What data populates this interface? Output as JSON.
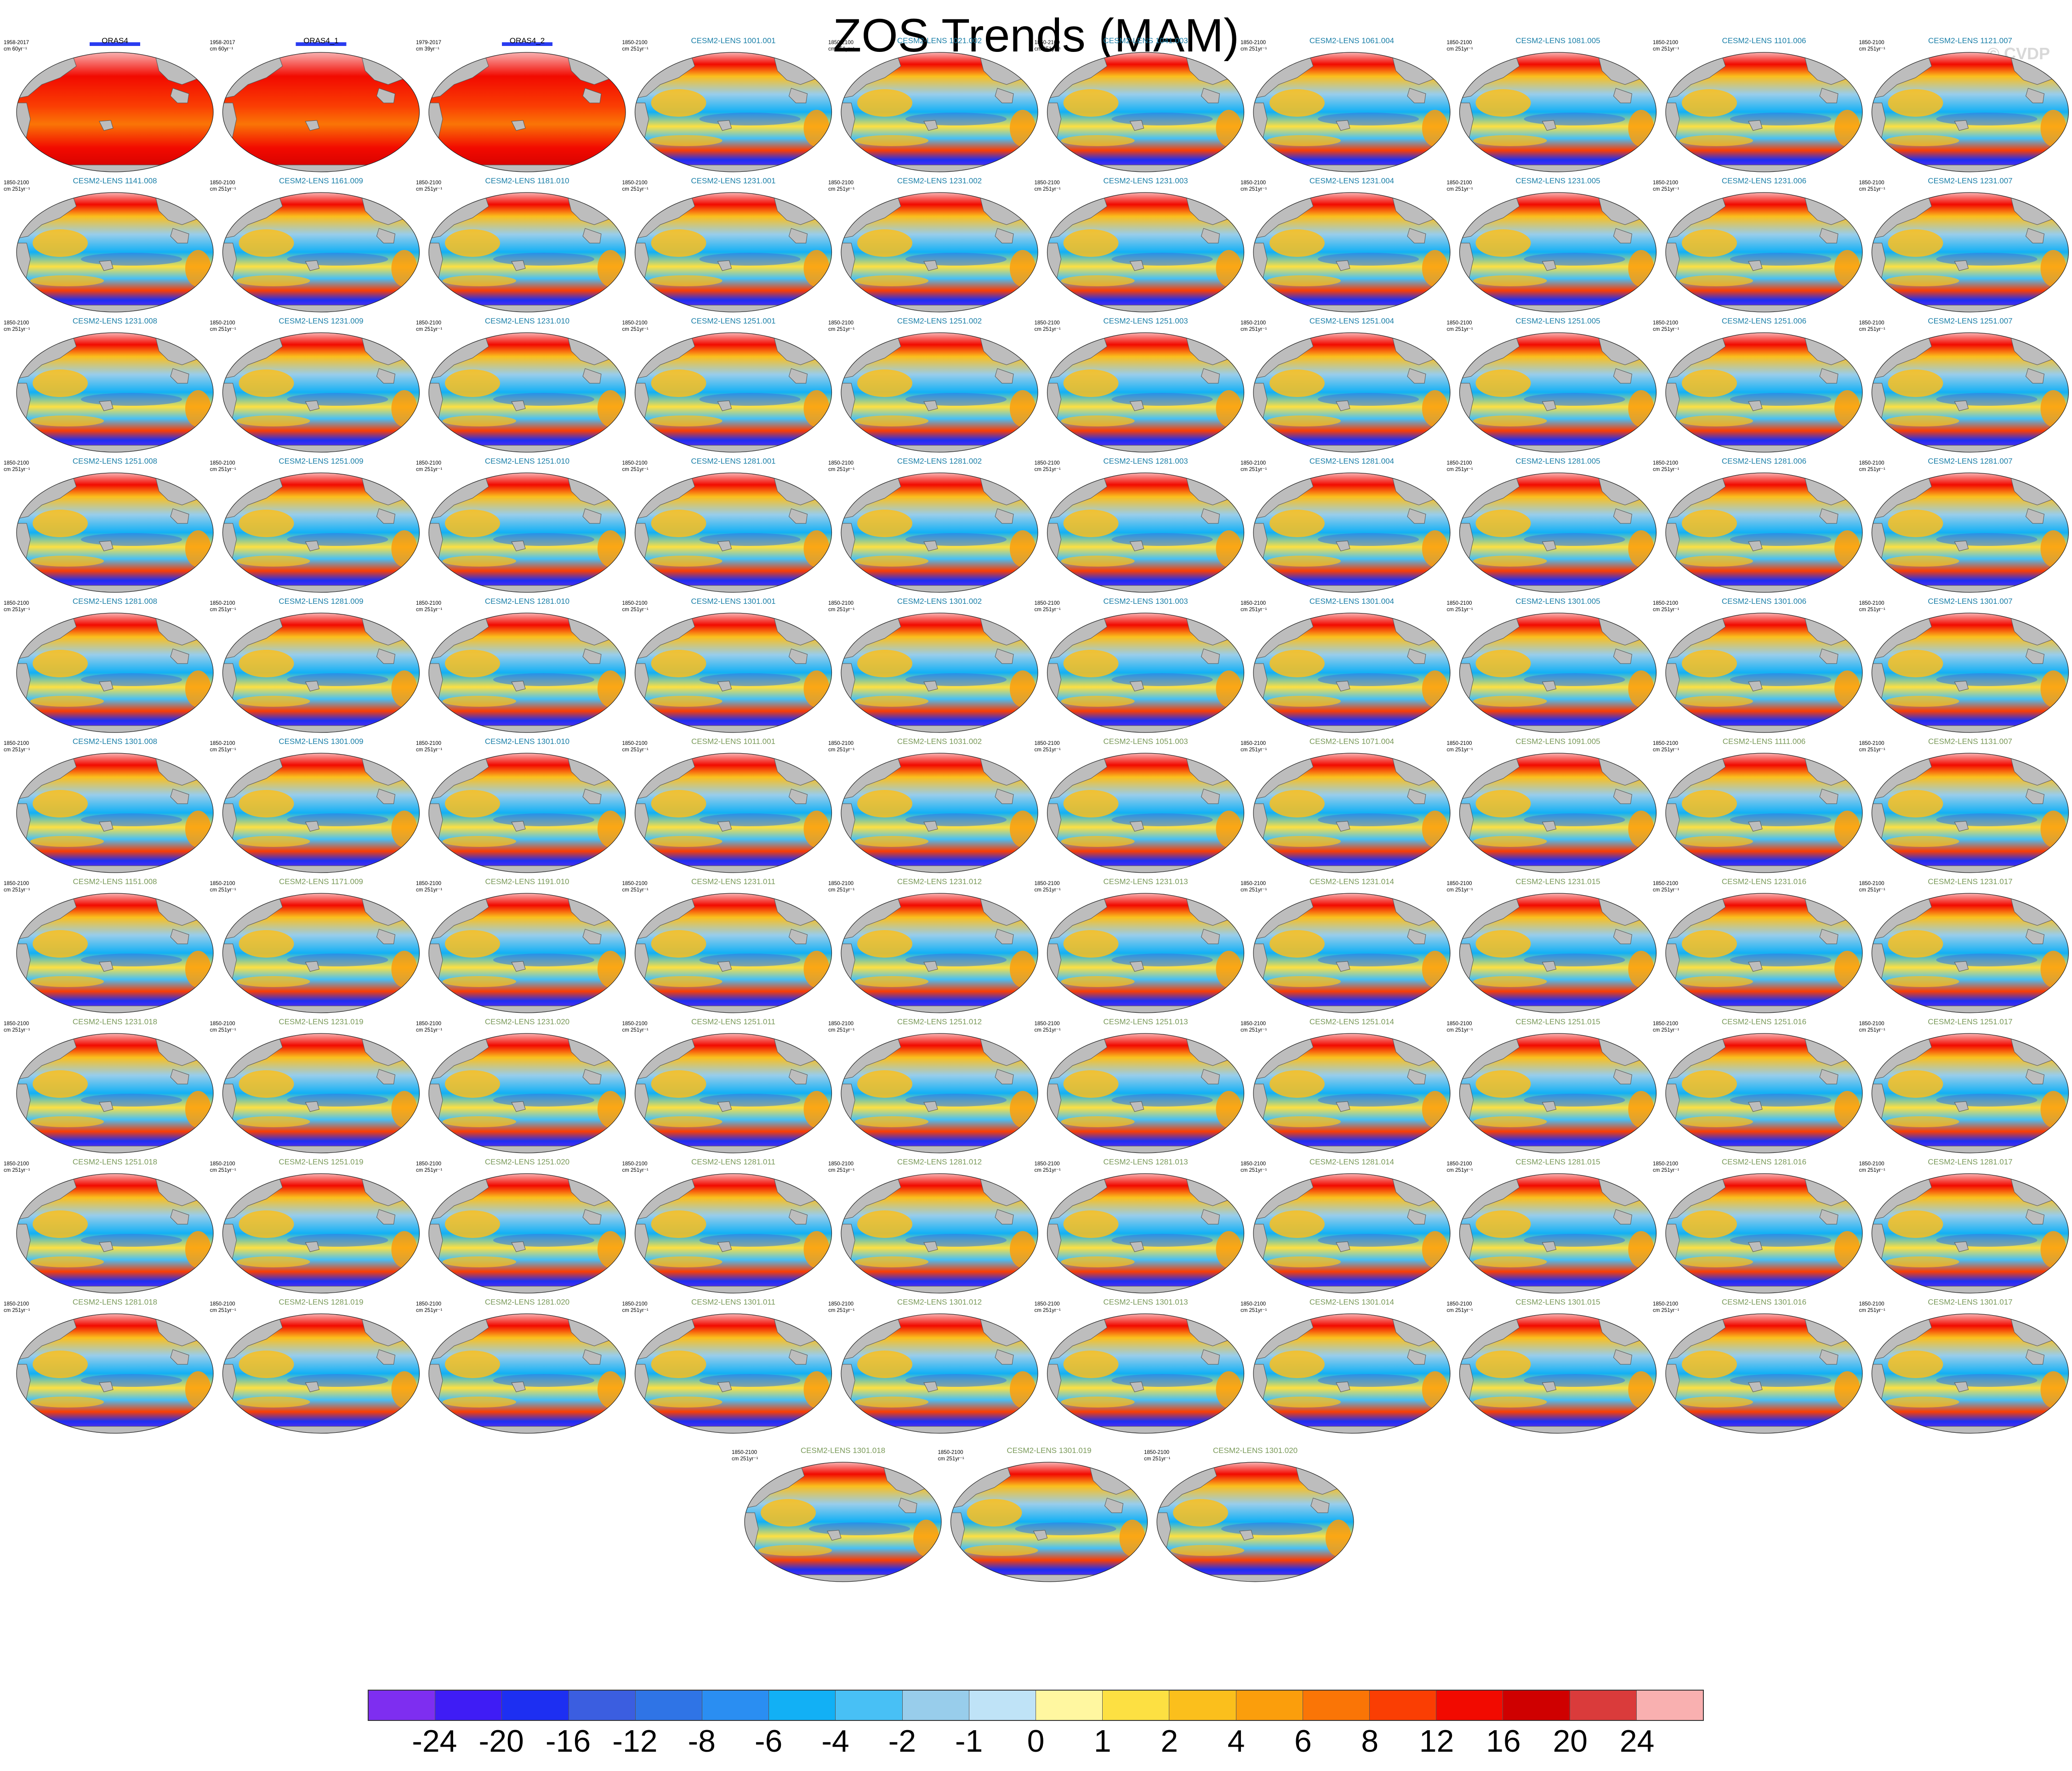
{
  "title": "ZOS Trends (MAM)",
  "copyright": "© CVDP",
  "chart_data": {
    "type": "heatmap",
    "title": "ZOS Trends (MAM)",
    "projection": "global map panels (Robinson-like)",
    "colorbar": {
      "levels": [
        "-24",
        "-20",
        "-16",
        "-12",
        "-8",
        "-6",
        "-4",
        "-2",
        "-1",
        "0",
        "1",
        "2",
        "4",
        "6",
        "8",
        "12",
        "16",
        "20",
        "24"
      ],
      "colors": [
        "#7e2ef0",
        "#3f1cf5",
        "#1d2ff2",
        "#3b5ee0",
        "#2f74e6",
        "#2a8ef2",
        "#12b0f5",
        "#48c0f5",
        "#98cdeb",
        "#bfe3f7",
        "#fff7a0",
        "#fde042",
        "#fbbf1c",
        "#fb9e0c",
        "#fa7506",
        "#fa3e03",
        "#f20a00",
        "#cf0000",
        "#da3b3b",
        "#f9b0b0"
      ]
    },
    "panels": [
      {
        "name": "ORAS4",
        "period": "1958-2017",
        "units": "cm 60yr⁻¹",
        "kind": "obs"
      },
      {
        "name": "ORAS4_1",
        "period": "1958-2017",
        "units": "cm 60yr⁻¹",
        "kind": "obs"
      },
      {
        "name": "ORAS4_2",
        "period": "1979-2017",
        "units": "cm 39yr⁻¹",
        "kind": "obs"
      },
      {
        "name": "CESM2-LENS 1001.001",
        "period": "1850-2100",
        "units": "cm 251yr⁻¹",
        "kind": "model"
      },
      {
        "name": "CESM2-LENS 1021.002",
        "period": "1850-2100",
        "units": "cm 251yr⁻¹",
        "kind": "model"
      },
      {
        "name": "CESM2-LENS 1041.003",
        "period": "1850-2100",
        "units": "cm 251yr⁻¹",
        "kind": "model"
      },
      {
        "name": "CESM2-LENS 1061.004",
        "period": "1850-2100",
        "units": "cm 251yr⁻¹",
        "kind": "model"
      },
      {
        "name": "CESM2-LENS 1081.005",
        "period": "1850-2100",
        "units": "cm 251yr⁻¹",
        "kind": "model"
      },
      {
        "name": "CESM2-LENS 1101.006",
        "period": "1850-2100",
        "units": "cm 251yr⁻¹",
        "kind": "model"
      },
      {
        "name": "CESM2-LENS 1121.007",
        "period": "1850-2100",
        "units": "cm 251yr⁻¹",
        "kind": "model"
      },
      {
        "name": "CESM2-LENS 1141.008",
        "period": "1850-2100",
        "units": "cm 251yr⁻¹",
        "kind": "model"
      },
      {
        "name": "CESM2-LENS 1161.009",
        "period": "1850-2100",
        "units": "cm 251yr⁻¹",
        "kind": "model"
      },
      {
        "name": "CESM2-LENS 1181.010",
        "period": "1850-2100",
        "units": "cm 251yr⁻¹",
        "kind": "model"
      },
      {
        "name": "CESM2-LENS 1231.001",
        "period": "1850-2100",
        "units": "cm 251yr⁻¹",
        "kind": "model"
      },
      {
        "name": "CESM2-LENS 1231.002",
        "period": "1850-2100",
        "units": "cm 251yr⁻¹",
        "kind": "model"
      },
      {
        "name": "CESM2-LENS 1231.003",
        "period": "1850-2100",
        "units": "cm 251yr⁻¹",
        "kind": "model"
      },
      {
        "name": "CESM2-LENS 1231.004",
        "period": "1850-2100",
        "units": "cm 251yr⁻¹",
        "kind": "model"
      },
      {
        "name": "CESM2-LENS 1231.005",
        "period": "1850-2100",
        "units": "cm 251yr⁻¹",
        "kind": "model"
      },
      {
        "name": "CESM2-LENS 1231.006",
        "period": "1850-2100",
        "units": "cm 251yr⁻¹",
        "kind": "model"
      },
      {
        "name": "CESM2-LENS 1231.007",
        "period": "1850-2100",
        "units": "cm 251yr⁻¹",
        "kind": "model"
      },
      {
        "name": "CESM2-LENS 1231.008",
        "period": "1850-2100",
        "units": "cm 251yr⁻¹",
        "kind": "model"
      },
      {
        "name": "CESM2-LENS 1231.009",
        "period": "1850-2100",
        "units": "cm 251yr⁻¹",
        "kind": "model"
      },
      {
        "name": "CESM2-LENS 1231.010",
        "period": "1850-2100",
        "units": "cm 251yr⁻¹",
        "kind": "model"
      },
      {
        "name": "CESM2-LENS 1251.001",
        "period": "1850-2100",
        "units": "cm 251yr⁻¹",
        "kind": "model"
      },
      {
        "name": "CESM2-LENS 1251.002",
        "period": "1850-2100",
        "units": "cm 251yr⁻¹",
        "kind": "model"
      },
      {
        "name": "CESM2-LENS 1251.003",
        "period": "1850-2100",
        "units": "cm 251yr⁻¹",
        "kind": "model"
      },
      {
        "name": "CESM2-LENS 1251.004",
        "period": "1850-2100",
        "units": "cm 251yr⁻¹",
        "kind": "model"
      },
      {
        "name": "CESM2-LENS 1251.005",
        "period": "1850-2100",
        "units": "cm 251yr⁻¹",
        "kind": "model"
      },
      {
        "name": "CESM2-LENS 1251.006",
        "period": "1850-2100",
        "units": "cm 251yr⁻¹",
        "kind": "model"
      },
      {
        "name": "CESM2-LENS 1251.007",
        "period": "1850-2100",
        "units": "cm 251yr⁻¹",
        "kind": "model"
      },
      {
        "name": "CESM2-LENS 1251.008",
        "period": "1850-2100",
        "units": "cm 251yr⁻¹",
        "kind": "model"
      },
      {
        "name": "CESM2-LENS 1251.009",
        "period": "1850-2100",
        "units": "cm 251yr⁻¹",
        "kind": "model"
      },
      {
        "name": "CESM2-LENS 1251.010",
        "period": "1850-2100",
        "units": "cm 251yr⁻¹",
        "kind": "model"
      },
      {
        "name": "CESM2-LENS 1281.001",
        "period": "1850-2100",
        "units": "cm 251yr⁻¹",
        "kind": "model"
      },
      {
        "name": "CESM2-LENS 1281.002",
        "period": "1850-2100",
        "units": "cm 251yr⁻¹",
        "kind": "model"
      },
      {
        "name": "CESM2-LENS 1281.003",
        "period": "1850-2100",
        "units": "cm 251yr⁻¹",
        "kind": "model"
      },
      {
        "name": "CESM2-LENS 1281.004",
        "period": "1850-2100",
        "units": "cm 251yr⁻¹",
        "kind": "model"
      },
      {
        "name": "CESM2-LENS 1281.005",
        "period": "1850-2100",
        "units": "cm 251yr⁻¹",
        "kind": "model"
      },
      {
        "name": "CESM2-LENS 1281.006",
        "period": "1850-2100",
        "units": "cm 251yr⁻¹",
        "kind": "model"
      },
      {
        "name": "CESM2-LENS 1281.007",
        "period": "1850-2100",
        "units": "cm 251yr⁻¹",
        "kind": "model"
      },
      {
        "name": "CESM2-LENS 1281.008",
        "period": "1850-2100",
        "units": "cm 251yr⁻¹",
        "kind": "model"
      },
      {
        "name": "CESM2-LENS 1281.009",
        "period": "1850-2100",
        "units": "cm 251yr⁻¹",
        "kind": "model"
      },
      {
        "name": "CESM2-LENS 1281.010",
        "period": "1850-2100",
        "units": "cm 251yr⁻¹",
        "kind": "model"
      },
      {
        "name": "CESM2-LENS 1301.001",
        "period": "1850-2100",
        "units": "cm 251yr⁻¹",
        "kind": "model"
      },
      {
        "name": "CESM2-LENS 1301.002",
        "period": "1850-2100",
        "units": "cm 251yr⁻¹",
        "kind": "model"
      },
      {
        "name": "CESM2-LENS 1301.003",
        "period": "1850-2100",
        "units": "cm 251yr⁻¹",
        "kind": "model"
      },
      {
        "name": "CESM2-LENS 1301.004",
        "period": "1850-2100",
        "units": "cm 251yr⁻¹",
        "kind": "model"
      },
      {
        "name": "CESM2-LENS 1301.005",
        "period": "1850-2100",
        "units": "cm 251yr⁻¹",
        "kind": "model"
      },
      {
        "name": "CESM2-LENS 1301.006",
        "period": "1850-2100",
        "units": "cm 251yr⁻¹",
        "kind": "model"
      },
      {
        "name": "CESM2-LENS 1301.007",
        "period": "1850-2100",
        "units": "cm 251yr⁻¹",
        "kind": "model"
      },
      {
        "name": "CESM2-LENS 1301.008",
        "period": "1850-2100",
        "units": "cm 251yr⁻¹",
        "kind": "model"
      },
      {
        "name": "CESM2-LENS 1301.009",
        "period": "1850-2100",
        "units": "cm 251yr⁻¹",
        "kind": "model"
      },
      {
        "name": "CESM2-LENS 1301.010",
        "period": "1850-2100",
        "units": "cm 251yr⁻¹",
        "kind": "model"
      },
      {
        "name": "CESM2-LENS 1011.001",
        "period": "1850-2100",
        "units": "cm 251yr⁻¹",
        "kind": "model2"
      },
      {
        "name": "CESM2-LENS 1031.002",
        "period": "1850-2100",
        "units": "cm 251yr⁻¹",
        "kind": "model2"
      },
      {
        "name": "CESM2-LENS 1051.003",
        "period": "1850-2100",
        "units": "cm 251yr⁻¹",
        "kind": "model2"
      },
      {
        "name": "CESM2-LENS 1071.004",
        "period": "1850-2100",
        "units": "cm 251yr⁻¹",
        "kind": "model2"
      },
      {
        "name": "CESM2-LENS 1091.005",
        "period": "1850-2100",
        "units": "cm 251yr⁻¹",
        "kind": "model2"
      },
      {
        "name": "CESM2-LENS 1111.006",
        "period": "1850-2100",
        "units": "cm 251yr⁻¹",
        "kind": "model2"
      },
      {
        "name": "CESM2-LENS 1131.007",
        "period": "1850-2100",
        "units": "cm 251yr⁻¹",
        "kind": "model2"
      },
      {
        "name": "CESM2-LENS 1151.008",
        "period": "1850-2100",
        "units": "cm 251yr⁻¹",
        "kind": "model2"
      },
      {
        "name": "CESM2-LENS 1171.009",
        "period": "1850-2100",
        "units": "cm 251yr⁻¹",
        "kind": "model2"
      },
      {
        "name": "CESM2-LENS 1191.010",
        "period": "1850-2100",
        "units": "cm 251yr⁻¹",
        "kind": "model2"
      },
      {
        "name": "CESM2-LENS 1231.011",
        "period": "1850-2100",
        "units": "cm 251yr⁻¹",
        "kind": "model2"
      },
      {
        "name": "CESM2-LENS 1231.012",
        "period": "1850-2100",
        "units": "cm 251yr⁻¹",
        "kind": "model2"
      },
      {
        "name": "CESM2-LENS 1231.013",
        "period": "1850-2100",
        "units": "cm 251yr⁻¹",
        "kind": "model2"
      },
      {
        "name": "CESM2-LENS 1231.014",
        "period": "1850-2100",
        "units": "cm 251yr⁻¹",
        "kind": "model2"
      },
      {
        "name": "CESM2-LENS 1231.015",
        "period": "1850-2100",
        "units": "cm 251yr⁻¹",
        "kind": "model2"
      },
      {
        "name": "CESM2-LENS 1231.016",
        "period": "1850-2100",
        "units": "cm 251yr⁻¹",
        "kind": "model2"
      },
      {
        "name": "CESM2-LENS 1231.017",
        "period": "1850-2100",
        "units": "cm 251yr⁻¹",
        "kind": "model2"
      },
      {
        "name": "CESM2-LENS 1231.018",
        "period": "1850-2100",
        "units": "cm 251yr⁻¹",
        "kind": "model2"
      },
      {
        "name": "CESM2-LENS 1231.019",
        "period": "1850-2100",
        "units": "cm 251yr⁻¹",
        "kind": "model2"
      },
      {
        "name": "CESM2-LENS 1231.020",
        "period": "1850-2100",
        "units": "cm 251yr⁻¹",
        "kind": "model2"
      },
      {
        "name": "CESM2-LENS 1251.011",
        "period": "1850-2100",
        "units": "cm 251yr⁻¹",
        "kind": "model2"
      },
      {
        "name": "CESM2-LENS 1251.012",
        "period": "1850-2100",
        "units": "cm 251yr⁻¹",
        "kind": "model2"
      },
      {
        "name": "CESM2-LENS 1251.013",
        "period": "1850-2100",
        "units": "cm 251yr⁻¹",
        "kind": "model2"
      },
      {
        "name": "CESM2-LENS 1251.014",
        "period": "1850-2100",
        "units": "cm 251yr⁻¹",
        "kind": "model2"
      },
      {
        "name": "CESM2-LENS 1251.015",
        "period": "1850-2100",
        "units": "cm 251yr⁻¹",
        "kind": "model2"
      },
      {
        "name": "CESM2-LENS 1251.016",
        "period": "1850-2100",
        "units": "cm 251yr⁻¹",
        "kind": "model2"
      },
      {
        "name": "CESM2-LENS 1251.017",
        "period": "1850-2100",
        "units": "cm 251yr⁻¹",
        "kind": "model2"
      },
      {
        "name": "CESM2-LENS 1251.018",
        "period": "1850-2100",
        "units": "cm 251yr⁻¹",
        "kind": "model2"
      },
      {
        "name": "CESM2-LENS 1251.019",
        "period": "1850-2100",
        "units": "cm 251yr⁻¹",
        "kind": "model2"
      },
      {
        "name": "CESM2-LENS 1251.020",
        "period": "1850-2100",
        "units": "cm 251yr⁻¹",
        "kind": "model2"
      },
      {
        "name": "CESM2-LENS 1281.011",
        "period": "1850-2100",
        "units": "cm 251yr⁻¹",
        "kind": "model2"
      },
      {
        "name": "CESM2-LENS 1281.012",
        "period": "1850-2100",
        "units": "cm 251yr⁻¹",
        "kind": "model2"
      },
      {
        "name": "CESM2-LENS 1281.013",
        "period": "1850-2100",
        "units": "cm 251yr⁻¹",
        "kind": "model2"
      },
      {
        "name": "CESM2-LENS 1281.014",
        "period": "1850-2100",
        "units": "cm 251yr⁻¹",
        "kind": "model2"
      },
      {
        "name": "CESM2-LENS 1281.015",
        "period": "1850-2100",
        "units": "cm 251yr⁻¹",
        "kind": "model2"
      },
      {
        "name": "CESM2-LENS 1281.016",
        "period": "1850-2100",
        "units": "cm 251yr⁻¹",
        "kind": "model2"
      },
      {
        "name": "CESM2-LENS 1281.017",
        "period": "1850-2100",
        "units": "cm 251yr⁻¹",
        "kind": "model2"
      },
      {
        "name": "CESM2-LENS 1281.018",
        "period": "1850-2100",
        "units": "cm 251yr⁻¹",
        "kind": "model2"
      },
      {
        "name": "CESM2-LENS 1281.019",
        "period": "1850-2100",
        "units": "cm 251yr⁻¹",
        "kind": "model2"
      },
      {
        "name": "CESM2-LENS 1281.020",
        "period": "1850-2100",
        "units": "cm 251yr⁻¹",
        "kind": "model2"
      },
      {
        "name": "CESM2-LENS 1301.011",
        "period": "1850-2100",
        "units": "cm 251yr⁻¹",
        "kind": "model2"
      },
      {
        "name": "CESM2-LENS 1301.012",
        "period": "1850-2100",
        "units": "cm 251yr⁻¹",
        "kind": "model2"
      },
      {
        "name": "CESM2-LENS 1301.013",
        "period": "1850-2100",
        "units": "cm 251yr⁻¹",
        "kind": "model2"
      },
      {
        "name": "CESM2-LENS 1301.014",
        "period": "1850-2100",
        "units": "cm 251yr⁻¹",
        "kind": "model2"
      },
      {
        "name": "CESM2-LENS 1301.015",
        "period": "1850-2100",
        "units": "cm 251yr⁻¹",
        "kind": "model2"
      },
      {
        "name": "CESM2-LENS 1301.016",
        "period": "1850-2100",
        "units": "cm 251yr⁻¹",
        "kind": "model2"
      },
      {
        "name": "CESM2-LENS 1301.017",
        "period": "1850-2100",
        "units": "cm 251yr⁻¹",
        "kind": "model2"
      },
      {
        "name": "CESM2-LENS 1301.018",
        "period": "1850-2100",
        "units": "cm 251yr⁻¹",
        "kind": "model2"
      },
      {
        "name": "CESM2-LENS 1301.019",
        "period": "1850-2100",
        "units": "cm 251yr⁻¹",
        "kind": "model2"
      },
      {
        "name": "CESM2-LENS 1301.020",
        "period": "1850-2100",
        "units": "cm 251yr⁻¹",
        "kind": "model2"
      }
    ]
  },
  "colors": {
    "land": "#bdbdbd",
    "title_obs": "#000000",
    "title_model": "#1a7fa8",
    "title_model2": "#7a9a5a"
  }
}
